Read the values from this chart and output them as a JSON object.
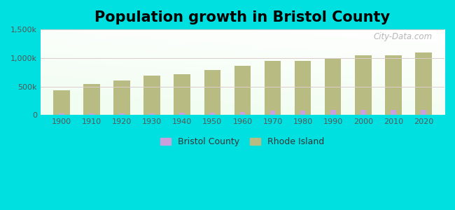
{
  "title": "Population growth in Bristol County",
  "title_fontsize": 15,
  "years": [
    1900,
    1910,
    1920,
    1930,
    1940,
    1950,
    1960,
    1970,
    1980,
    1990,
    2000,
    2010,
    2020
  ],
  "bristol_county": [
    22000,
    24000,
    26000,
    31000,
    36000,
    37000,
    52000,
    78000,
    80000,
    83000,
    88000,
    88000,
    92000
  ],
  "rhode_island": [
    428556,
    542610,
    604397,
    687497,
    713346,
    791896,
    859488,
    949723,
    947154,
    1003464,
    1048319,
    1052567,
    1097379
  ],
  "bristol_color": "#c9a0dc",
  "rhode_island_color": "#b8bc82",
  "background_color": "#e8f5e0",
  "outer_background": "#00e0e0",
  "ylim": [
    0,
    1500000
  ],
  "yticks": [
    0,
    500000,
    1000000,
    1500000
  ],
  "watermark": "City-Data.com",
  "legend_labels": [
    "Bristol County",
    "Rhode Island"
  ]
}
